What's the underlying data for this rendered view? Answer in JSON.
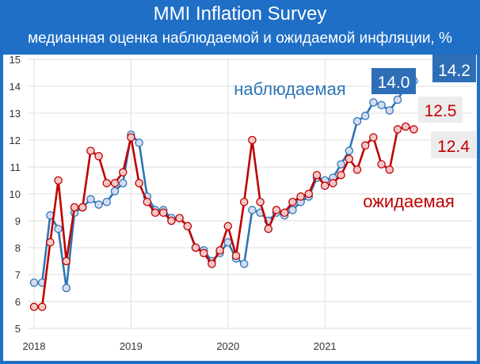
{
  "header": {
    "title": "MMI Inflation Survey",
    "subtitle": "медианная оценка наблюдаемой и ожидаемой инфляции, %"
  },
  "colors": {
    "header_bg": "#1f6fc7",
    "observed": "#2e75b6",
    "expected": "#c00000"
  },
  "chart_data": {
    "type": "line",
    "title": "MMI Inflation Survey",
    "subtitle": "медианная оценка наблюдаемой и ожидаемой инфляции, %",
    "xlabel": "",
    "ylabel": "",
    "ylim": [
      5,
      15
    ],
    "yticks": [
      5,
      6,
      7,
      8,
      9,
      10,
      11,
      12,
      13,
      14,
      15
    ],
    "x_tick_labels": [
      "2018",
      "2019",
      "2020",
      "2021"
    ],
    "x_start": "2018-01",
    "x_interval": "month",
    "grid": true,
    "legend": "inline labels",
    "series": [
      {
        "name": "наблюдаемая",
        "color": "#2e75b6",
        "end_label": "14.0",
        "last_label": "14.2",
        "values": [
          6.7,
          6.7,
          9.2,
          8.7,
          6.5,
          9.3,
          9.5,
          9.8,
          9.6,
          9.7,
          10.1,
          10.4,
          12.2,
          11.9,
          9.9,
          9.4,
          9.4,
          9.1,
          9.1,
          8.8,
          8.0,
          7.9,
          7.5,
          7.8,
          8.2,
          7.6,
          7.4,
          9.4,
          9.3,
          9.0,
          9.3,
          9.2,
          9.4,
          9.7,
          9.9,
          10.6,
          10.5,
          10.6,
          11.1,
          11.6,
          12.7,
          12.9,
          13.4,
          13.3,
          13.1,
          13.5,
          14.0,
          14.2
        ]
      },
      {
        "name": "ожидаемая",
        "color": "#c00000",
        "end_label": "12.5",
        "last_label": "12.4",
        "values": [
          5.8,
          5.8,
          8.2,
          10.5,
          7.5,
          9.5,
          9.5,
          11.6,
          11.4,
          10.4,
          10.4,
          10.8,
          12.1,
          10.4,
          9.7,
          9.3,
          9.3,
          9.0,
          9.1,
          8.8,
          8.0,
          7.8,
          7.4,
          7.9,
          8.8,
          7.7,
          9.7,
          12.0,
          9.7,
          8.7,
          9.4,
          9.3,
          9.7,
          9.9,
          10.0,
          10.7,
          10.3,
          10.4,
          10.7,
          11.3,
          10.9,
          11.8,
          12.1,
          11.1,
          10.9,
          12.4,
          12.5,
          12.4
        ]
      }
    ]
  }
}
